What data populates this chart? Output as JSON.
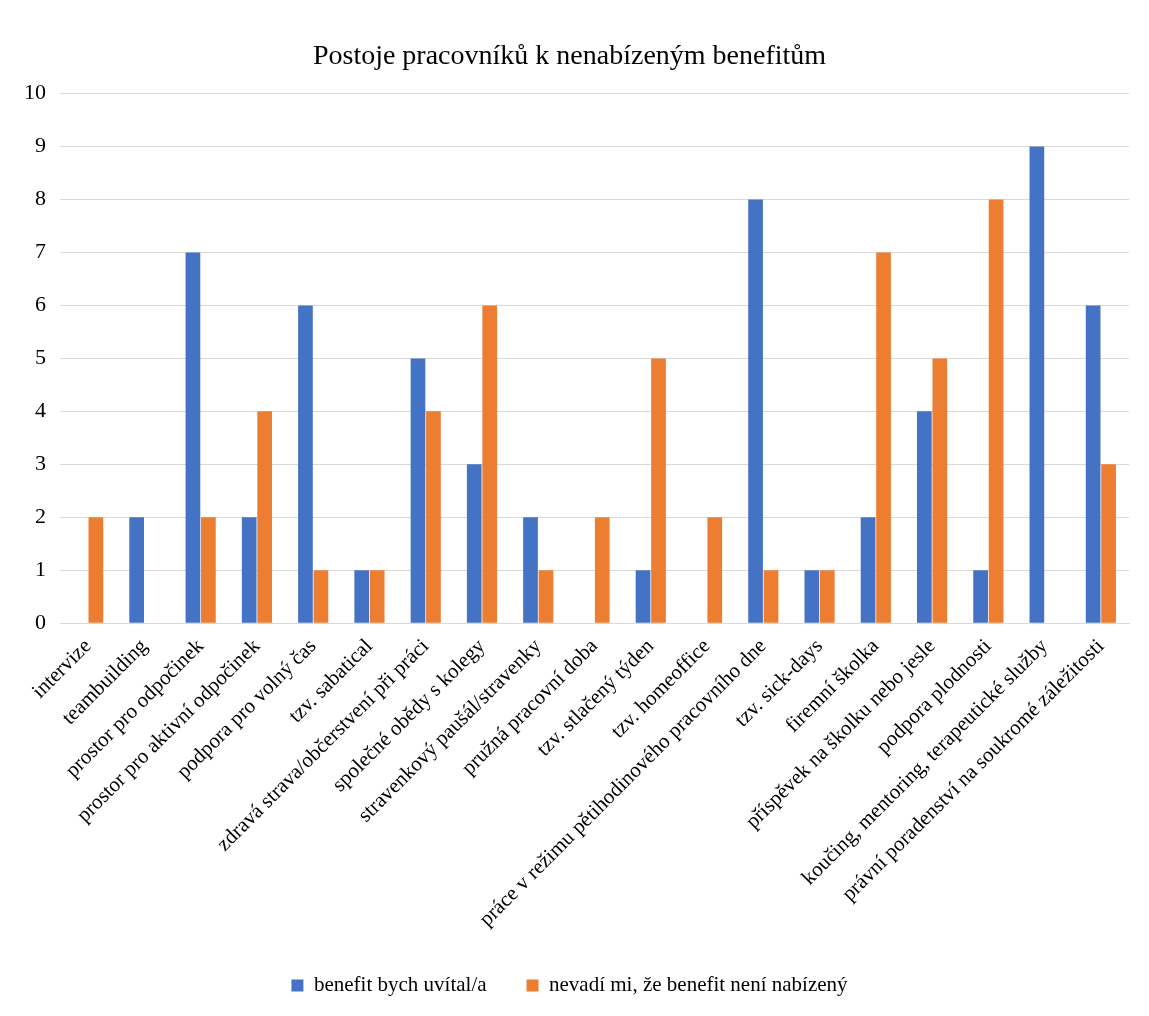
{
  "chart_data": {
    "type": "bar",
    "title": "Postoje pracovníků k nenabízeným benefitům",
    "categories": [
      "intervize",
      "teambuilding",
      "prostor pro odpočinek",
      "prostor pro aktivní odpočinek",
      "podpora pro volný čas",
      "tzv. sabatical",
      "zdravá strava/občerstvení při práci",
      "společné obědy s kolegy",
      "stravenkový paušál/stravenky",
      "pružná pracovní doba",
      "tzv. stlačený týden",
      "tzv. homeoffice",
      "práce v režimu pětihodinového pracovního dne",
      "tzv. sick-days",
      "firemní školka",
      "příspěvek na školku nebo jesle",
      "podpora plodnosti",
      "koučing, mentoring, terapeutické služby",
      "právní poradenství na soukromé záležitosti"
    ],
    "series": [
      {
        "name": "benefit bych uvítal/a",
        "color": "#4472c4",
        "values": [
          0,
          2,
          7,
          2,
          6,
          1,
          5,
          3,
          2,
          0,
          1,
          0,
          8,
          1,
          2,
          4,
          1,
          9,
          6
        ]
      },
      {
        "name": "nevadí mi, že benefit není nabízený",
        "color": "#ed7d31",
        "values": [
          2,
          0,
          2,
          4,
          1,
          1,
          4,
          6,
          1,
          2,
          5,
          2,
          1,
          1,
          7,
          5,
          8,
          0,
          3
        ]
      }
    ],
    "ylim": [
      0,
      10
    ],
    "yticks": [
      0,
      1,
      2,
      3,
      4,
      5,
      6,
      7,
      8,
      9,
      10
    ],
    "grid": "y",
    "legend": "bottom"
  }
}
